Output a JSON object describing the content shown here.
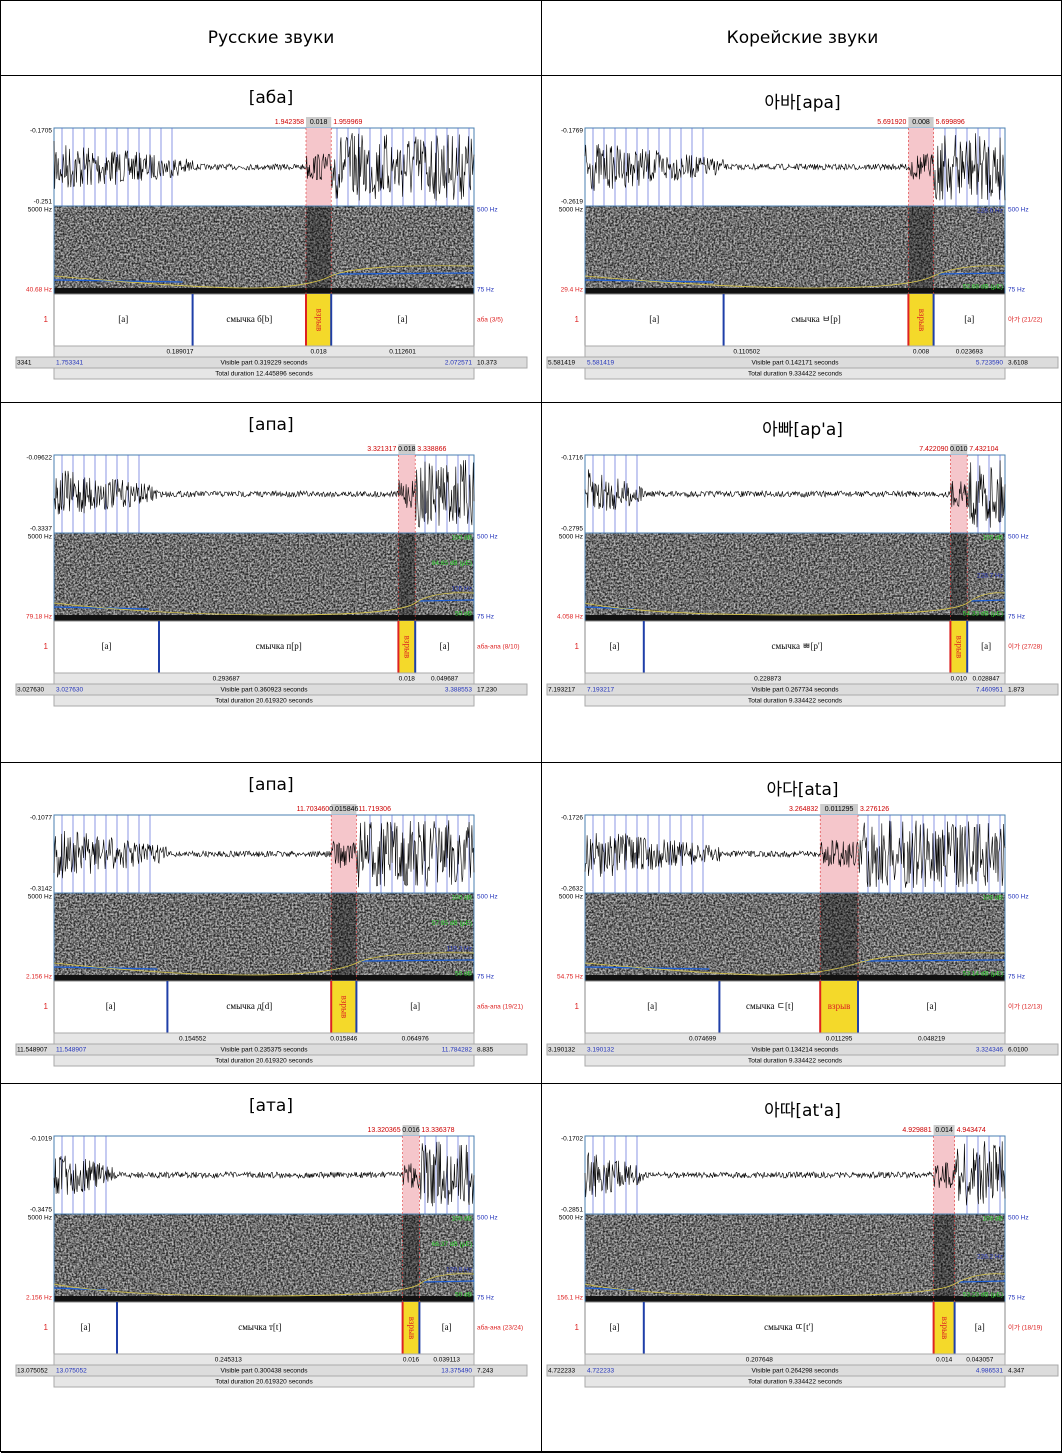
{
  "header": {
    "ru": "Русские звуки",
    "ko": "Корейские звуки"
  },
  "panels": [
    {
      "title": "[аба]",
      "sel": [
        "1.942358",
        "0.018",
        "1.959969"
      ],
      "amp": [
        "-0.1705",
        "-0.251"
      ],
      "freq": [
        "5000 Hz",
        "500 Hz",
        "75 Hz"
      ],
      "extra": [],
      "pitch": "40.68 Hz",
      "tier": "1",
      "tier_name": "аба (3/5)",
      "intervals": [
        "[a]",
        "смычка б[b]",
        "взрыв",
        "[a]"
      ],
      "durs": [
        "0.189017",
        "0.018",
        "0.112601"
      ],
      "times": [
        "3341",
        "1.753341",
        "2.072571",
        "10.373"
      ],
      "visible": "Visible part 0.319229 seconds",
      "total": "Total duration 12.445896 seconds"
    },
    {
      "title": "아바[apa]",
      "sel": [
        "5.691920",
        "0.008",
        "5.699896"
      ],
      "amp": [
        "-0.1769",
        "-0.2619"
      ],
      "freq": [
        "5000 Hz",
        "500 Hz",
        "75 Hz"
      ],
      "extra": [
        "228.6 Hz",
        "52.68 dB (μE)"
      ],
      "pitch": "29.4 Hz",
      "tier": "1",
      "tier_name": "아가 (21/22)",
      "intervals": [
        "[a]",
        "смычка ㅂ[p]",
        "взрыв",
        "[a]"
      ],
      "durs": [
        "0.110502",
        "0.008",
        "0.023693"
      ],
      "times": [
        "5.581419",
        "5.581419",
        "5.723590",
        "3.6108"
      ],
      "visible": "Visible part 0.142171 seconds",
      "total": "Total duration 9.334422 seconds"
    },
    {
      "title": "[апа]",
      "sel": [
        "3.321317",
        "0.018",
        "3.338866"
      ],
      "amp": [
        "-0.09622",
        "-0.3337"
      ],
      "freq": [
        "5000 Hz",
        "500 Hz",
        "75 Hz"
      ],
      "extra": [
        "100 dB",
        "84.65 dB (μE)",
        "126 Hz",
        "50 dB"
      ],
      "pitch": "79.18 Hz",
      "tier": "1",
      "tier_name": "аба-апа (8/10)",
      "intervals": [
        "[a]",
        "смычка п[p]",
        "взрыв",
        "[a]"
      ],
      "durs": [
        "0.293687",
        "0.018",
        "0.049687"
      ],
      "times": [
        "3.027630",
        "3.027630",
        "3.388553",
        "17.230"
      ],
      "visible": "Visible part 0.360923 seconds",
      "total": "Total duration 20.619320 seconds"
    },
    {
      "title": "아빠[ap'a]",
      "sel": [
        "7.422090",
        "0.010",
        "7.432104"
      ],
      "amp": [
        "-0.1716",
        "-0.2795"
      ],
      "freq": [
        "5000 Hz",
        "500 Hz",
        "75 Hz"
      ],
      "extra": [
        "100 dB",
        "228.7 Hz",
        "54.33 dB (μE)"
      ],
      "pitch": "4.058 Hz",
      "tier": "1",
      "tier_name": "이가 (27/28)",
      "intervals": [
        "[a]",
        "смычка ㅃ[p']",
        "взрыв",
        "[a]"
      ],
      "durs": [
        "0.228873",
        "0.010",
        "0.028847"
      ],
      "times": [
        "7.193217",
        "7.193217",
        "7.460951",
        "1.873"
      ],
      "visible": "Visible part 0.267734 seconds",
      "total": "Total duration 9.334422 seconds"
    },
    {
      "title": "[апа]",
      "sel": [
        "11.703460",
        "0.015846",
        "11.719306"
      ],
      "amp": [
        "-0.1077",
        "-0.3142"
      ],
      "freq": [
        "5000 Hz",
        "500 Hz",
        "75 Hz"
      ],
      "extra": [
        "100 dB",
        "57.95 dB (μE)",
        "119.3 Hz",
        "50 dB"
      ],
      "pitch": "2.156 Hz",
      "tier": "1",
      "tier_name": "аба-апа (19/21)",
      "intervals": [
        "[a]",
        "смычка д[d]",
        "взрыв",
        "[a]"
      ],
      "durs": [
        "0.154552",
        "0.015846",
        "0.064976"
      ],
      "times": [
        "11.548907",
        "11.548907",
        "11.784282",
        "8.835"
      ],
      "visible": "Visible part 0.235375 seconds",
      "total": "Total duration 20.619320 seconds"
    },
    {
      "title": "아다[ata]",
      "sel": [
        "3.264832",
        "0.011295",
        "3.276126"
      ],
      "amp": [
        "-0.1726",
        "-0.2632"
      ],
      "freq": [
        "5000 Hz",
        "500 Hz",
        "75 Hz"
      ],
      "extra": [
        "100 dB",
        "53.14 dB (μE)"
      ],
      "pitch": "54.75 Hz",
      "tier": "1",
      "tier_name": "이가 (12/13)",
      "intervals": [
        "[a]",
        "смычка ㄷ[t]",
        "взрыв",
        "[a]"
      ],
      "durs": [
        "0.074699",
        "0.011295",
        "0.048219"
      ],
      "times": [
        "3.190132",
        "3.190132",
        "3.324346",
        "6.0100"
      ],
      "visible": "Visible part 0.134214 seconds",
      "total": "Total duration 9.334422 seconds"
    },
    {
      "title": "[ата]",
      "sel": [
        "13.320365",
        "0.016",
        "13.336378"
      ],
      "amp": [
        "-0.1019",
        "-0.3475"
      ],
      "freq": [
        "5000 Hz",
        "500 Hz",
        "75 Hz"
      ],
      "extra": [
        "100 dB",
        "66.37 dB (μE)",
        "129.8 Hz",
        "50 dB"
      ],
      "pitch": "2.156 Hz",
      "tier": "1",
      "tier_name": "аба-ана (23/24)",
      "intervals": [
        "[a]",
        "смычка т[t]",
        "взрыв",
        "[a]"
      ],
      "durs": [
        "0.245313",
        "0.016",
        "0.039113"
      ],
      "times": [
        "13.075052",
        "13.075052",
        "13.375490",
        "7.243"
      ],
      "visible": "Visible part 0.300438 seconds",
      "total": "Total duration 20.619320 seconds"
    },
    {
      "title": "아따[at'a]",
      "sel": [
        "4.929881",
        "0.014",
        "4.943474"
      ],
      "amp": [
        "-0.1702",
        "-0.2851"
      ],
      "freq": [
        "5000 Hz",
        "500 Hz",
        "75 Hz"
      ],
      "extra": [
        "100 dB",
        "226.2 Hz",
        "53.23 dB (μE)"
      ],
      "pitch": "156.1 Hz",
      "tier": "1",
      "tier_name": "이가 (18/19)",
      "intervals": [
        "[a]",
        "смычка ㄸ[t']",
        "взрыв",
        "[a]"
      ],
      "durs": [
        "0.207648",
        "0.014",
        "0.043057"
      ],
      "times": [
        "4.722233",
        "4.722233",
        "4.986531",
        "4.347"
      ],
      "visible": "Visible part 0.264298 seconds",
      "total": "Total duration 9.334422 seconds"
    }
  ]
}
